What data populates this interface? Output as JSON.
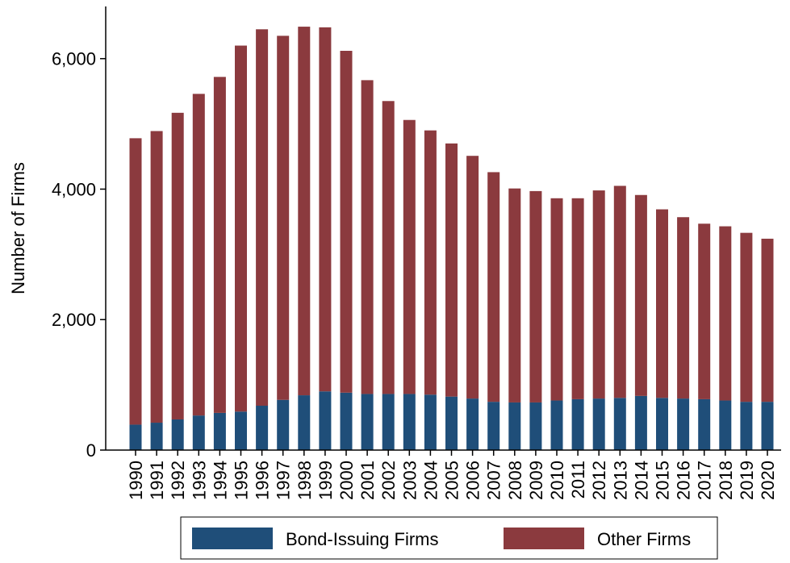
{
  "chart_data": {
    "type": "bar",
    "stacked": true,
    "ylabel": "Number of Firms",
    "xlabel": "",
    "ylim": [
      0,
      6800
    ],
    "yticks": [
      0,
      2000,
      4000,
      6000
    ],
    "ytick_labels": [
      "0",
      "2,000",
      "4,000",
      "6,000"
    ],
    "grid": false,
    "legend_position": "bottom",
    "categories": [
      "1990",
      "1991",
      "1992",
      "1993",
      "1994",
      "1995",
      "1996",
      "1997",
      "1998",
      "1999",
      "2000",
      "2001",
      "2002",
      "2003",
      "2004",
      "2005",
      "2006",
      "2007",
      "2008",
      "2009",
      "2010",
      "2011",
      "2012",
      "2013",
      "2014",
      "2015",
      "2016",
      "2017",
      "2018",
      "2019",
      "2020"
    ],
    "series": [
      {
        "name": "Bond-Issuing Firms",
        "color": "#1f4e79",
        "values": [
          390,
          420,
          470,
          530,
          570,
          590,
          680,
          770,
          840,
          900,
          880,
          860,
          860,
          860,
          850,
          820,
          790,
          740,
          730,
          730,
          760,
          780,
          790,
          800,
          830,
          800,
          790,
          780,
          760,
          740,
          740
        ]
      },
      {
        "name": "Other Firms",
        "color": "#8b3a3e",
        "values": [
          4390,
          4470,
          4700,
          4930,
          5150,
          5610,
          5770,
          5580,
          5650,
          5580,
          5240,
          4810,
          4490,
          4200,
          4050,
          3880,
          3720,
          3520,
          3280,
          3240,
          3100,
          3080,
          3190,
          3250,
          3080,
          2890,
          2780,
          2690,
          2670,
          2590,
          2500
        ]
      }
    ],
    "totals": [
      4780,
      4890,
      5170,
      5460,
      5720,
      6200,
      6450,
      6350,
      6490,
      6480,
      6120,
      5670,
      5350,
      5060,
      4900,
      4700,
      4510,
      4260,
      4010,
      3970,
      3860,
      3860,
      3980,
      4050,
      3910,
      3690,
      3570,
      3470,
      3430,
      3330,
      3240
    ]
  }
}
